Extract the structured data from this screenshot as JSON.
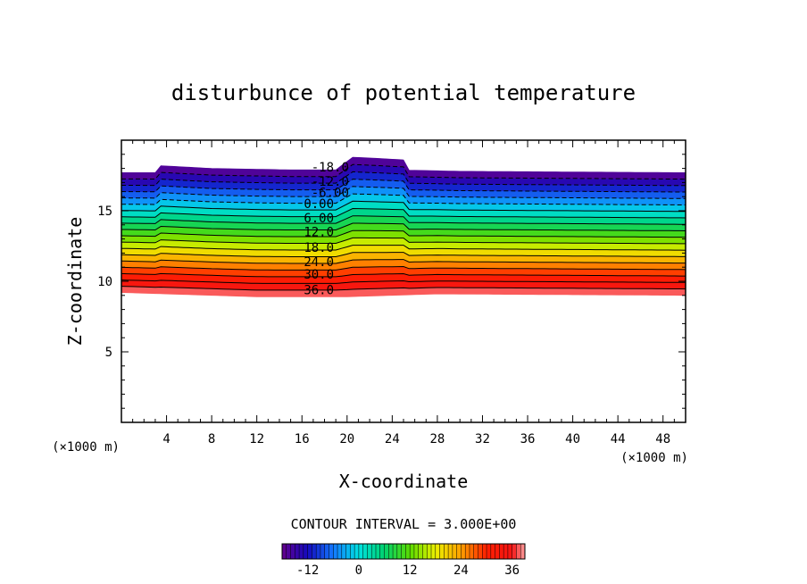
{
  "chart_data": {
    "type": "heatmap",
    "title": "disturbunce of potential temperature",
    "xlabel": "X-coordinate",
    "ylabel": "Z-coordinate",
    "x_unit": "(×1000 m)",
    "y_unit": "(×1000 m)",
    "xlim": [
      0,
      50
    ],
    "ylim": [
      0,
      20
    ],
    "x_ticks": [
      4,
      8,
      12,
      16,
      20,
      24,
      28,
      32,
      36,
      40,
      44,
      48
    ],
    "y_ticks": [
      5,
      10,
      15
    ],
    "contour_interval_text": "CONTOUR INTERVAL = 3.000E+00",
    "contour_interval": 3.0,
    "contour_labels": [
      {
        "text": "-18.0",
        "x": 18.5,
        "z": 18.1
      },
      {
        "text": "-12.0",
        "x": 18.5,
        "z": 17.1
      },
      {
        "text": "-6.00",
        "x": 18.5,
        "z": 16.3
      },
      {
        "text": "0.00",
        "x": 17.5,
        "z": 15.5
      },
      {
        "text": "6.00",
        "x": 17.5,
        "z": 14.5
      },
      {
        "text": "12.0",
        "x": 17.5,
        "z": 13.5
      },
      {
        "text": "18.0",
        "x": 17.5,
        "z": 12.4
      },
      {
        "text": "24.0",
        "x": 17.5,
        "z": 11.4
      },
      {
        "text": "30.0",
        "x": 17.5,
        "z": 10.5
      },
      {
        "text": "36.0",
        "x": 17.5,
        "z": 9.4
      }
    ],
    "field_top_z": [
      {
        "x": 0,
        "z": 17.7
      },
      {
        "x": 3,
        "z": 17.7
      },
      {
        "x": 3.4,
        "z": 18.2
      },
      {
        "x": 8,
        "z": 18.0
      },
      {
        "x": 15,
        "z": 17.9
      },
      {
        "x": 19,
        "z": 17.9
      },
      {
        "x": 20.5,
        "z": 18.8
      },
      {
        "x": 23,
        "z": 18.7
      },
      {
        "x": 25.2,
        "z": 18.6
      },
      {
        "x": 24.2,
        "z": 17.9
      },
      {
        "x": 30,
        "z": 17.8
      },
      {
        "x": 50,
        "z": 17.7
      }
    ],
    "field_bottom_z": [
      {
        "x": 0,
        "z": 9.2
      },
      {
        "x": 12,
        "z": 8.9
      },
      {
        "x": 20,
        "z": 8.9
      },
      {
        "x": 28,
        "z": 9.1
      },
      {
        "x": 50,
        "z": 9.0
      }
    ],
    "colorbar": {
      "min": -18,
      "max": 39,
      "ticks": [
        -12,
        0,
        12,
        24,
        36
      ]
    }
  }
}
